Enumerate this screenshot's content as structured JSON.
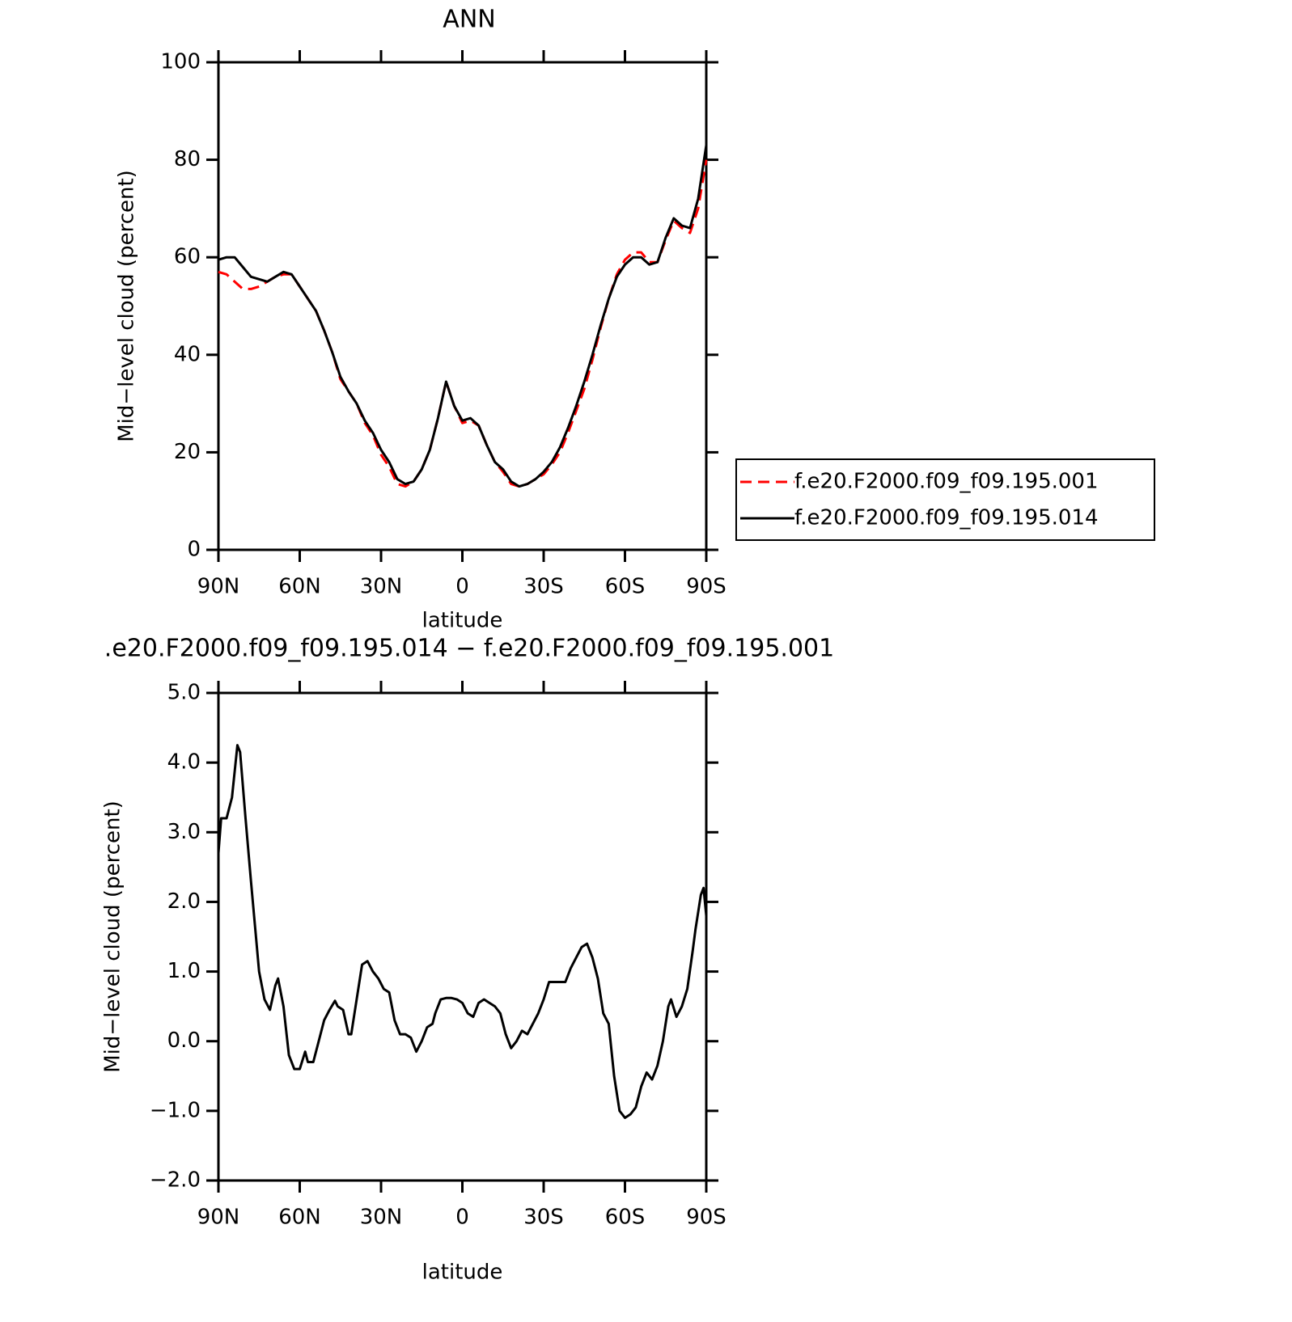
{
  "chart_data": [
    {
      "type": "line",
      "title": "ANN",
      "xlabel": "latitude",
      "ylabel": "Mid−level cloud (percent)",
      "x": [
        90,
        87,
        84,
        81,
        78,
        75,
        72,
        69,
        66,
        63,
        60,
        57,
        54,
        51,
        48,
        45,
        42,
        39,
        36,
        33,
        30,
        27,
        24,
        21,
        18,
        15,
        12,
        9,
        6,
        3,
        0,
        -3,
        -6,
        -9,
        -12,
        -15,
        -18,
        -21,
        -24,
        -27,
        -30,
        -33,
        -36,
        -39,
        -42,
        -45,
        -48,
        -51,
        -54,
        -57,
        -60,
        -63,
        -66,
        -69,
        -72,
        -75,
        -78,
        -81,
        -84,
        -87,
        -90
      ],
      "series": [
        {
          "name": "f.e20.F2000.f09_f09.195.001",
          "color": "#ff0000",
          "dash": true,
          "values": [
            57,
            56.5,
            55,
            53.5,
            53.5,
            54,
            55,
            56,
            56.5,
            56.5,
            54,
            51.5,
            49,
            45,
            40.5,
            35,
            32.5,
            30,
            26,
            23.5,
            19.5,
            17,
            13.5,
            13,
            14,
            16.5,
            20.5,
            27,
            34.5,
            29.5,
            26,
            26.5,
            25.5,
            21.5,
            18,
            16,
            13.5,
            13,
            13.5,
            14.5,
            15.5,
            17.5,
            20,
            24,
            28.5,
            33,
            39,
            45.5,
            51.5,
            56.5,
            59.5,
            61,
            61,
            59,
            59,
            63.5,
            67.5,
            66,
            65,
            70,
            80
          ]
        },
        {
          "name": "f.e20.F2000.f09_f09.195.014",
          "color": "#000000",
          "dash": false,
          "values": [
            59.5,
            60,
            60,
            58,
            56,
            55.5,
            55,
            56,
            57,
            56.5,
            54,
            51.5,
            49,
            45,
            40.5,
            35.5,
            32.5,
            30,
            26.5,
            24,
            20.5,
            18,
            14.5,
            13.5,
            14,
            16.5,
            20.5,
            27,
            34.5,
            29.5,
            26.5,
            27,
            25.5,
            21.5,
            18,
            16.5,
            14,
            13,
            13.5,
            14.5,
            16,
            18,
            21,
            25,
            29.5,
            34.5,
            40,
            46,
            51.5,
            56,
            58.5,
            60,
            60,
            58.5,
            59,
            64,
            68,
            66.5,
            66,
            72,
            83
          ]
        }
      ],
      "xlim": [
        90,
        -90
      ],
      "xticks": [
        {
          "value": 90,
          "label": "90N"
        },
        {
          "value": 60,
          "label": "60N"
        },
        {
          "value": 30,
          "label": "30N"
        },
        0,
        {
          "value": -30,
          "label": "30S"
        },
        {
          "value": -60,
          "label": "60S"
        },
        {
          "value": -90,
          "label": "90S"
        }
      ],
      "ylim": [
        0,
        100
      ],
      "yticks": [
        0,
        20,
        40,
        60,
        80,
        100
      ],
      "legend": "right"
    },
    {
      "type": "line",
      "title": ".e20.F2000.f09_f09.195.014 − f.e20.F2000.f09_f09.195.001",
      "xlabel": "latitude",
      "ylabel": "Mid−level cloud (percent)",
      "x": [
        90,
        89,
        87,
        85,
        83,
        82,
        80,
        78,
        75,
        73,
        71,
        69,
        68,
        66,
        64,
        62,
        60,
        58,
        57,
        55,
        53,
        51,
        49,
        47,
        46,
        44,
        42,
        41,
        39,
        37,
        35,
        33,
        31,
        29,
        27,
        25,
        23,
        21,
        19,
        17,
        15,
        13,
        11,
        10,
        8,
        6,
        4,
        2,
        0,
        -2,
        -4,
        -6,
        -8,
        -10,
        -12,
        -14,
        -16,
        -18,
        -20,
        -22,
        -24,
        -26,
        -28,
        -30,
        -32,
        -34,
        -36,
        -38,
        -40,
        -42,
        -44,
        -46,
        -48,
        -50,
        -52,
        -54,
        -56,
        -58,
        -60,
        -62,
        -64,
        -66,
        -68,
        -70,
        -72,
        -74,
        -76,
        -77,
        -79,
        -81,
        -83,
        -85,
        -86,
        -88,
        -89,
        -90
      ],
      "series": [
        {
          "color": "#000000",
          "dash": false,
          "values": [
            2.7,
            3.2,
            3.2,
            3.5,
            4.25,
            4.15,
            3.2,
            2.3,
            1.0,
            0.6,
            0.45,
            0.8,
            0.9,
            0.5,
            -0.2,
            -0.4,
            -0.4,
            -0.15,
            -0.3,
            -0.3,
            0.0,
            0.3,
            0.45,
            0.58,
            0.5,
            0.45,
            0.1,
            0.1,
            0.6,
            1.1,
            1.15,
            1.0,
            0.9,
            0.75,
            0.7,
            0.3,
            0.1,
            0.1,
            0.05,
            -0.15,
            0.0,
            0.2,
            0.25,
            0.4,
            0.6,
            0.62,
            0.62,
            0.6,
            0.55,
            0.4,
            0.35,
            0.55,
            0.6,
            0.55,
            0.5,
            0.4,
            0.1,
            -0.1,
            0.0,
            0.15,
            0.1,
            0.25,
            0.4,
            0.6,
            0.85,
            0.85,
            0.85,
            0.85,
            1.05,
            1.2,
            1.35,
            1.4,
            1.2,
            0.9,
            0.4,
            0.25,
            -0.5,
            -1.0,
            -1.1,
            -1.05,
            -0.95,
            -0.65,
            -0.45,
            -0.55,
            -0.35,
            0.0,
            0.5,
            0.6,
            0.35,
            0.5,
            0.75,
            1.3,
            1.6,
            2.1,
            2.2,
            1.8
          ]
        }
      ],
      "xlim": [
        90,
        -90
      ],
      "xticks": [
        {
          "value": 90,
          "label": "90N"
        },
        {
          "value": 60,
          "label": "60N"
        },
        {
          "value": 30,
          "label": "30N"
        },
        0,
        {
          "value": -30,
          "label": "30S"
        },
        {
          "value": -60,
          "label": "60S"
        },
        {
          "value": -90,
          "label": "90S"
        }
      ],
      "ylim": [
        -2,
        5
      ],
      "yticks": [
        {
          "value": -2,
          "label": "−2.0"
        },
        {
          "value": -1,
          "label": "−1.0"
        },
        {
          "value": 0,
          "label": "0.0"
        },
        {
          "value": 1,
          "label": "1.0"
        },
        {
          "value": 2,
          "label": "2.0"
        },
        {
          "value": 3,
          "label": "3.0"
        },
        {
          "value": 4,
          "label": "4.0"
        },
        {
          "value": 5,
          "label": "5.0"
        }
      ]
    }
  ]
}
